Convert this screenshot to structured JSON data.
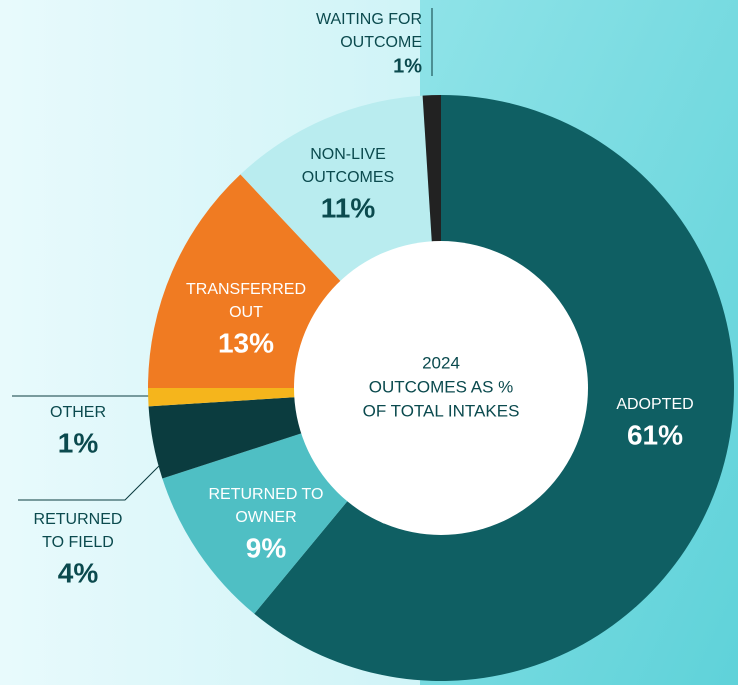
{
  "chart_data": {
    "type": "pie",
    "center_label": [
      "2024",
      "OUTCOMES AS %",
      "OF TOTAL INTAKES"
    ],
    "categories": [
      "ADOPTED",
      "RETURNED TO\nOWNER",
      "RETURNED\nTO FIELD",
      "OTHER",
      "TRANSFERRED\nOUT",
      "NON-LIVE\nOUTCOMES",
      "WAITING FOR\nOUTCOME"
    ],
    "values": [
      61,
      9,
      4,
      1,
      13,
      11,
      1
    ],
    "value_labels": [
      "61%",
      "9%",
      "4%",
      "1%",
      "13%",
      "11%",
      "1%"
    ],
    "colors": [
      "#0f5f63",
      "#4fbfc4",
      "#0b3c3f",
      "#f5b51c",
      "#f07b22",
      "#b9ecef",
      "#222222"
    ]
  }
}
